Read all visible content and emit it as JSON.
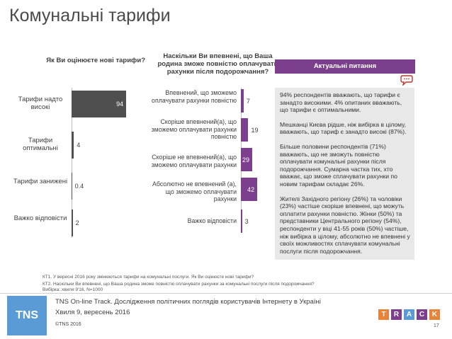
{
  "page": {
    "title": "Комунальні тарифи",
    "page_number": "17"
  },
  "left_chart": {
    "question": "Як Ви оцінюєте нові тарифи?"
  },
  "right_chart": {
    "question": "Наскільки Ви впевнені, що Ваша родина зможе повністю оплачувати рахунки після подорожчання?"
  },
  "side_panel": {
    "badge": "Актуальні питання",
    "icon": "speech-bubble-icon",
    "paragraphs": [
      "94% респондентів вважають, що тарифи є занадто високими. 4% опитаних вважають, що тарифи є оптимальними.",
      "Мешканці Києва рідше, ніж вибірка в цілому, вважають, що тариф є занадто високі (87%).",
      "Більше половини респондентів (71%) вважають, що не зможуть повністю оплачувати комунальні рахунки після подорожчання. Сумарна частка тих, хто вважає, що зможе сплачувати рахунки по новим тарифам складає 26%.",
      "Жителі Західного регіону (26%) та чоловіки (23%) частіше скоріше впевнені, що можуть оплатити рахунки повністю. Жінки (50%) та представники Центрального регіону (54%), респонденти у віці 41-55 років (50%) частіше, ніж вибірка в цілому, абсолютно не впевнені у своїх можливостях сплачувати комунальні послуги після подорожчання."
    ]
  },
  "chart_data": [
    {
      "type": "bar",
      "orientation": "horizontal",
      "categories": [
        "Тарифи надто високі",
        "Тарифи оптимальні",
        "Тарифи занижені",
        "Важко відповісти"
      ],
      "values": [
        94,
        4,
        0.4,
        2
      ],
      "value_labels": [
        "94",
        "4",
        "0.4",
        "2"
      ],
      "color": "#4f4f4f",
      "xlim": [
        0,
        100
      ]
    },
    {
      "type": "bar",
      "orientation": "horizontal",
      "categories": [
        "Впевнений, що зможемо оплачувати рахунки повністю",
        "Скоріше впевнений(а), що зможемо оплачувати рахунки повністю",
        "Скоріше не впевнений(а), що зможемо оплачувати рахунки",
        "Абсолютно не впевнений (а), що зможемо оплачувати рахунки",
        "Важко відповісти"
      ],
      "values": [
        7,
        19,
        29,
        42,
        3
      ],
      "value_labels": [
        "7",
        "19",
        "29",
        "42",
        "3"
      ],
      "color": "#7b3f8d",
      "xlim": [
        0,
        100
      ]
    }
  ],
  "footnotes": [
    "КТ1. У вересні 2016 року змінюються тарифи на комунальні послуги. Як Ви оцінюєте нові тарифи?",
    "КТ2. Наскільки Ви впевнені, що Ваша родина зможе повністю оплачувати рахунки за комунальні послуги після подорожчання?",
    "Вибірка: хвиля 9'16, N=1000"
  ],
  "footer": {
    "logo_text": "TNS",
    "line1": "TNS On-line Track. Дослідження політичних поглядів користувачів Інтернету в Україні",
    "line2": "Хвиля 9, вересень 2016",
    "copyright": "©TNS 2016",
    "track_letters": [
      "T",
      "R",
      "A",
      "C",
      "K"
    ],
    "track_colors": [
      "#e8833a",
      "#7b3f8d",
      "#5b9bd5",
      "#7b3f8d",
      "#e8833a"
    ]
  }
}
